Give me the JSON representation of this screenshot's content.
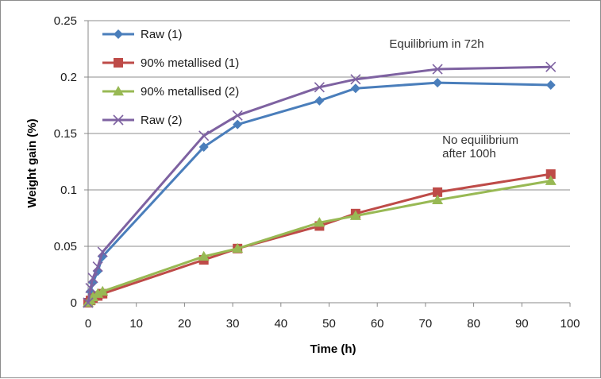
{
  "chart_data": {
    "type": "line",
    "title": "",
    "xlabel": "Time (h)",
    "ylabel": "Weight gain (%)",
    "xlim": [
      0,
      100
    ],
    "ylim": [
      0,
      0.25
    ],
    "x_ticks": [
      0,
      10,
      20,
      30,
      40,
      50,
      60,
      70,
      80,
      90,
      100
    ],
    "y_ticks": [
      0,
      0.05,
      0.1,
      0.15,
      0.2,
      0.25
    ],
    "x_tick_labels": [
      "0",
      "10",
      "20",
      "30",
      "40",
      "50",
      "60",
      "70",
      "80",
      "90",
      "100"
    ],
    "y_tick_labels": [
      "0",
      "0.05",
      "0.1",
      "0.15",
      "0.2",
      "0.25"
    ],
    "grid": "horizontal",
    "legend_position": "top-left",
    "series": [
      {
        "name": "Raw (1)",
        "color": "#4a7ebb",
        "marker": "diamond",
        "points": [
          [
            0,
            0.0
          ],
          [
            0.5,
            0.01
          ],
          [
            1,
            0.018
          ],
          [
            2,
            0.028
          ],
          [
            3,
            0.041
          ],
          [
            24,
            0.138
          ],
          [
            31,
            0.158
          ],
          [
            48,
            0.179
          ],
          [
            55.5,
            0.19
          ],
          [
            72.5,
            0.195
          ],
          [
            96,
            0.193
          ]
        ]
      },
      {
        "name": "90% metallised (1)",
        "color": "#be4b48",
        "marker": "square",
        "points": [
          [
            0,
            0.0
          ],
          [
            0.5,
            0.002
          ],
          [
            1,
            0.004
          ],
          [
            2,
            0.006
          ],
          [
            3,
            0.008
          ],
          [
            24,
            0.038
          ],
          [
            31,
            0.048
          ],
          [
            48,
            0.068
          ],
          [
            55.5,
            0.079
          ],
          [
            72.5,
            0.098
          ],
          [
            96,
            0.114
          ]
        ]
      },
      {
        "name": "90% metallised (2)",
        "color": "#98b954",
        "marker": "triangle",
        "points": [
          [
            0,
            0.0
          ],
          [
            0.5,
            0.002
          ],
          [
            1,
            0.005
          ],
          [
            2,
            0.008
          ],
          [
            3,
            0.01
          ],
          [
            24,
            0.041
          ],
          [
            31,
            0.048
          ],
          [
            48,
            0.071
          ],
          [
            55.5,
            0.077
          ],
          [
            72.5,
            0.091
          ],
          [
            96,
            0.108
          ]
        ]
      },
      {
        "name": "Raw (2)",
        "color": "#7e62a1",
        "marker": "x",
        "points": [
          [
            0,
            0.0
          ],
          [
            0.5,
            0.013
          ],
          [
            1,
            0.022
          ],
          [
            2,
            0.032
          ],
          [
            3,
            0.045
          ],
          [
            24,
            0.148
          ],
          [
            31,
            0.166
          ],
          [
            48,
            0.191
          ],
          [
            55.5,
            0.198
          ],
          [
            72.5,
            0.207
          ],
          [
            96,
            0.209
          ]
        ]
      }
    ],
    "annotations": [
      {
        "text": "Equilibrium in 72h",
        "x": 62.5,
        "y": 0.226
      },
      {
        "text": "No equilibrium",
        "x": 73.5,
        "y": 0.141
      },
      {
        "text": "after 100h",
        "x": 73.5,
        "y": 0.129
      }
    ]
  }
}
